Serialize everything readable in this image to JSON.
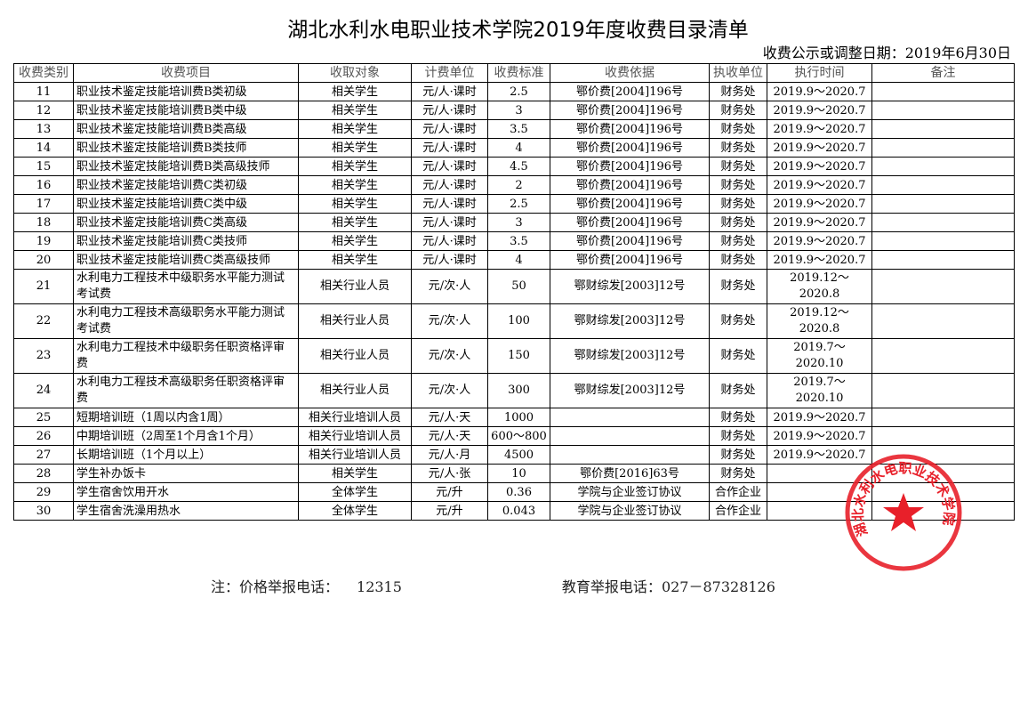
{
  "title": "湖北水利水电职业技术学院2019年度收费目录清单",
  "date_line": "收费公示或调整日期：2019年6月30日",
  "headers": [
    "收费类别",
    "收费项目",
    "收取对象",
    "计费单位",
    "收费标准",
    "收费依据",
    "执收单位",
    "执行时间",
    "备注"
  ],
  "rows": [
    [
      "11",
      "职业技术鉴定技能培训费B类初级",
      "相关学生",
      "元/人·课时",
      "2.5",
      "鄂价费[2004]196号",
      "财务处",
      "2019.9～2020.7",
      ""
    ],
    [
      "12",
      "职业技术鉴定技能培训费B类中级",
      "相关学生",
      "元/人·课时",
      "3",
      "鄂价费[2004]196号",
      "财务处",
      "2019.9～2020.7",
      ""
    ],
    [
      "13",
      "职业技术鉴定技能培训费B类高级",
      "相关学生",
      "元/人·课时",
      "3.5",
      "鄂价费[2004]196号",
      "财务处",
      "2019.9～2020.7",
      ""
    ],
    [
      "14",
      "职业技术鉴定技能培训费B类技师",
      "相关学生",
      "元/人·课时",
      "4",
      "鄂价费[2004]196号",
      "财务处",
      "2019.9～2020.7",
      ""
    ],
    [
      "15",
      "职业技术鉴定技能培训费B类高级技师",
      "相关学生",
      "元/人·课时",
      "4.5",
      "鄂价费[2004]196号",
      "财务处",
      "2019.9～2020.7",
      ""
    ],
    [
      "16",
      "职业技术鉴定技能培训费C类初级",
      "相关学生",
      "元/人·课时",
      "2",
      "鄂价费[2004]196号",
      "财务处",
      "2019.9～2020.7",
      ""
    ],
    [
      "17",
      "职业技术鉴定技能培训费C类中级",
      "相关学生",
      "元/人·课时",
      "2.5",
      "鄂价费[2004]196号",
      "财务处",
      "2019.9～2020.7",
      ""
    ],
    [
      "18",
      "职业技术鉴定技能培训费C类高级",
      "相关学生",
      "元/人·课时",
      "3",
      "鄂价费[2004]196号",
      "财务处",
      "2019.9～2020.7",
      ""
    ],
    [
      "19",
      "职业技术鉴定技能培训费C类技师",
      "相关学生",
      "元/人·课时",
      "3.5",
      "鄂价费[2004]196号",
      "财务处",
      "2019.9～2020.7",
      ""
    ],
    [
      "20",
      "职业技术鉴定技能培训费C类高级技师",
      "相关学生",
      "元/人·课时",
      "4",
      "鄂价费[2004]196号",
      "财务处",
      "2019.9～2020.7",
      ""
    ],
    [
      "21",
      "水利电力工程技术中级职务水平能力测试考试费",
      "相关行业人员",
      "元/次·人",
      "50",
      "鄂财综发[2003]12号",
      "财务处",
      "2019.12～2020.8",
      ""
    ],
    [
      "22",
      "水利电力工程技术高级职务水平能力测试考试费",
      "相关行业人员",
      "元/次·人",
      "100",
      "鄂财综发[2003]12号",
      "财务处",
      "2019.12～2020.8",
      ""
    ],
    [
      "23",
      "水利电力工程技术中级职务任职资格评审费",
      "相关行业人员",
      "元/次·人",
      "150",
      "鄂财综发[2003]12号",
      "财务处",
      "2019.7～2020.10",
      ""
    ],
    [
      "24",
      "水利电力工程技术高级职务任职资格评审费",
      "相关行业人员",
      "元/次·人",
      "300",
      "鄂财综发[2003]12号",
      "财务处",
      "2019.7～2020.10",
      ""
    ],
    [
      "25",
      "短期培训班（1周以内含1周）",
      "相关行业培训人员",
      "元/人·天",
      "1000",
      "",
      "财务处",
      "2019.9～2020.7",
      ""
    ],
    [
      "26",
      "中期培训班（2周至1个月含1个月）",
      "相关行业培训人员",
      "元/人·天",
      "600～800",
      "",
      "财务处",
      "2019.9～2020.7",
      ""
    ],
    [
      "27",
      "长期培训班（1个月以上）",
      "相关行业培训人员",
      "元/人·月",
      "4500",
      "",
      "财务处",
      "2019.9～2020.7",
      ""
    ],
    [
      "28",
      "学生补办饭卡",
      "相关学生",
      "元/人·张",
      "10",
      "鄂价费[2016]63号",
      "财务处",
      "",
      ""
    ],
    [
      "29",
      "学生宿舍饮用开水",
      "全体学生",
      "元/升",
      "0.36",
      "学院与企业签订协议",
      "合作企业",
      "",
      ""
    ],
    [
      "30",
      "学生宿舍洗澡用热水",
      "全体学生",
      "元/升",
      "0.043",
      "学院与企业签订协议",
      "合作企业",
      "",
      ""
    ]
  ],
  "note": {
    "price_label": "注：价格举报电话：",
    "price_phone": "12315",
    "edu_label": "教育举报电话：",
    "edu_phone": "027－87328126"
  },
  "seal": {
    "text": "湖北水利水电职业技术学院",
    "color": "#e8202a"
  }
}
